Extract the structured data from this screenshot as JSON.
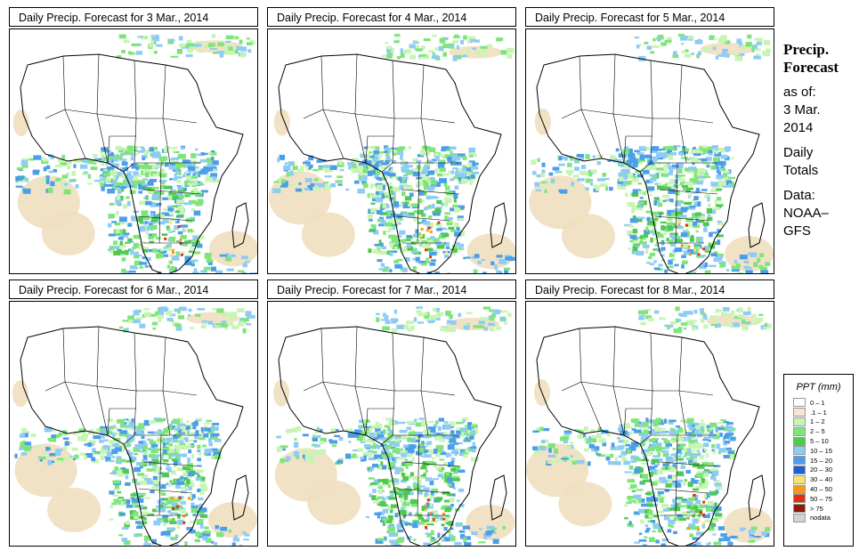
{
  "panels": [
    {
      "title": "Daily Precip. Forecast for  3 Mar., 2014"
    },
    {
      "title": "Daily Precip. Forecast for  4 Mar., 2014"
    },
    {
      "title": "Daily Precip. Forecast for  5 Mar., 2014"
    },
    {
      "title": "Daily Precip. Forecast for  6 Mar., 2014"
    },
    {
      "title": "Daily Precip. Forecast for  7 Mar., 2014"
    },
    {
      "title": "Daily Precip. Forecast for  8 Mar., 2014"
    }
  ],
  "sidebar": {
    "heading_line1": "Precip.",
    "heading_line2": "Forecast",
    "asof_label": "as of:",
    "date_line1": "3 Mar.",
    "date_line2": "2014",
    "totals_line1": "Daily",
    "totals_line2": "Totals",
    "data_label": "Data:",
    "source_line1": "NOAA–",
    "source_line2": "GFS"
  },
  "legend": {
    "title": "PPT (mm)",
    "items": [
      {
        "label": "0 – 1",
        "color": "#ffffff"
      },
      {
        "label": ".1 – 1",
        "color": "#f3e7cf"
      },
      {
        "label": "1 – 2",
        "color": "#c8f5b4"
      },
      {
        "label": "2 – 5",
        "color": "#7ee57a"
      },
      {
        "label": "5 – 10",
        "color": "#4fc94f"
      },
      {
        "label": "10 – 15",
        "color": "#8ecbf5"
      },
      {
        "label": "15 – 20",
        "color": "#4b9ee8"
      },
      {
        "label": "20 – 30",
        "color": "#1f5fd6"
      },
      {
        "label": "30 – 40",
        "color": "#f7e27a"
      },
      {
        "label": "40 – 50",
        "color": "#f59a1c"
      },
      {
        "label": "50 – 75",
        "color": "#e03010"
      },
      {
        "label": "> 75",
        "color": "#8c1a0a"
      },
      {
        "label": "nodata",
        "color": "#d3d3d3"
      }
    ]
  }
}
